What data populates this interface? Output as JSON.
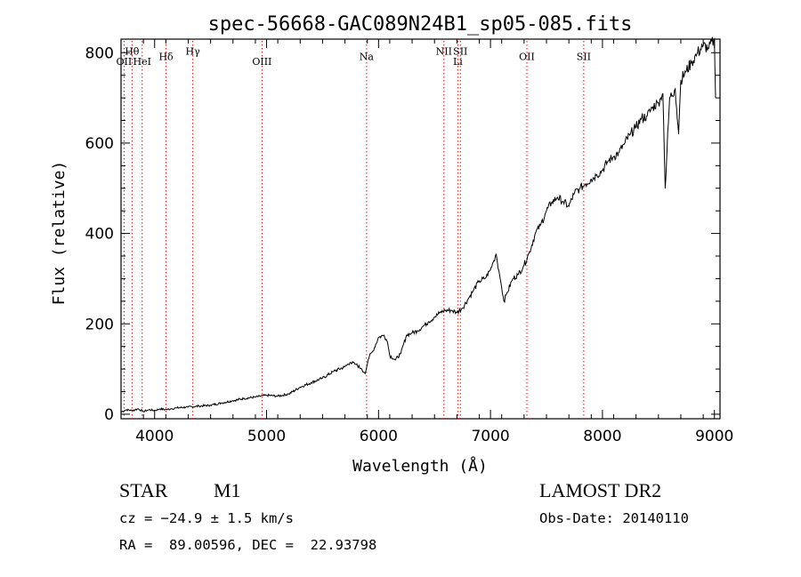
{
  "chart_data": {
    "type": "line",
    "title": "spec-56668-GAC089N24B1_sp05-085.fits",
    "xlabel": "Wavelength (Å)",
    "ylabel": "Flux (relative)",
    "xlim": [
      3700,
      9050
    ],
    "ylim": [
      -10,
      830
    ],
    "xticks": [
      4000,
      5000,
      6000,
      7000,
      8000,
      9000
    ],
    "yticks": [
      0,
      200,
      400,
      600,
      800
    ],
    "series": [
      {
        "name": "spectrum",
        "x": [
          3700,
          3750,
          3800,
          3850,
          3900,
          3950,
          4000,
          4050,
          4100,
          4150,
          4200,
          4300,
          4400,
          4500,
          4600,
          4700,
          4800,
          4900,
          5000,
          5100,
          5200,
          5300,
          5400,
          5500,
          5600,
          5700,
          5750,
          5800,
          5850,
          5880,
          5900,
          5920,
          5950,
          6000,
          6050,
          6080,
          6100,
          6150,
          6200,
          6250,
          6300,
          6350,
          6400,
          6450,
          6500,
          6550,
          6600,
          6650,
          6700,
          6750,
          6800,
          6850,
          6900,
          6950,
          7000,
          7030,
          7050,
          7080,
          7100,
          7120,
          7150,
          7200,
          7250,
          7300,
          7350,
          7400,
          7450,
          7500,
          7550,
          7600,
          7650,
          7700,
          7750,
          7800,
          7850,
          7900,
          7950,
          8000,
          8050,
          8100,
          8150,
          8200,
          8250,
          8300,
          8350,
          8400,
          8450,
          8500,
          8520,
          8540,
          8560,
          8600,
          8650,
          8680,
          8700,
          8750,
          8800,
          8850,
          8900,
          8950,
          9000,
          9010
        ],
        "y": [
          5,
          10,
          8,
          12,
          6,
          10,
          8,
          12,
          10,
          12,
          14,
          16,
          18,
          20,
          25,
          30,
          35,
          38,
          42,
          40,
          45,
          60,
          70,
          80,
          95,
          105,
          115,
          110,
          100,
          90,
          110,
          130,
          140,
          170,
          175,
          160,
          130,
          120,
          135,
          175,
          180,
          185,
          195,
          205,
          215,
          225,
          230,
          230,
          225,
          235,
          255,
          275,
          295,
          300,
          320,
          340,
          355,
          310,
          280,
          250,
          270,
          300,
          310,
          330,
          360,
          400,
          420,
          450,
          470,
          480,
          470,
          460,
          490,
          500,
          510,
          520,
          530,
          540,
          560,
          570,
          580,
          600,
          620,
          635,
          655,
          660,
          680,
          690,
          700,
          710,
          500,
          700,
          720,
          620,
          740,
          760,
          780,
          800,
          815,
          810,
          830,
          700
        ]
      }
    ],
    "lines": [
      {
        "label": "Hθ",
        "x": 3798,
        "row": 1
      },
      {
        "label": "OII",
        "x": 3727,
        "row": 2
      },
      {
        "label": "HeI",
        "x": 3889,
        "row": 2
      },
      {
        "label": "Hδ",
        "x": 4102,
        "row": 1.5
      },
      {
        "label": "Hγ",
        "x": 4341,
        "row": 1
      },
      {
        "label": "OIII",
        "x": 4959,
        "row": 2
      },
      {
        "label": "Na",
        "x": 5893,
        "row": 1.5
      },
      {
        "label": "NII",
        "x": 6584,
        "row": 1
      },
      {
        "label": "Li",
        "x": 6708,
        "row": 2
      },
      {
        "label": "SII",
        "x": 6731,
        "row": 1
      },
      {
        "label": "OII",
        "x": 7325,
        "row": 1.5
      },
      {
        "label": "SII",
        "x": 7833,
        "row": 1.5
      }
    ]
  },
  "info": {
    "object_class": "STAR",
    "subclass": "M1",
    "survey": "LAMOST DR2",
    "redshift_line": "cz = −24.9 ± 1.5 km/s",
    "obs_date_line": "Obs-Date: 20140110",
    "coords_line": "RA =  89.00596, DEC =  22.93798"
  }
}
